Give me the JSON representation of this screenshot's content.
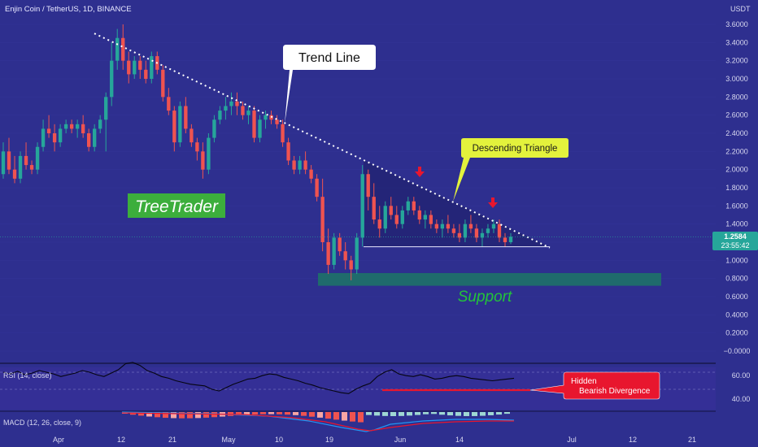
{
  "header": {
    "symbol": "Enjin Coin / TetherUS, 1D, BINANCE",
    "currency": "USDT"
  },
  "annotations": {
    "trend_line": "Trend Line",
    "triangle": "Descending Triangle",
    "brand": "TreeTrader",
    "support": "Support",
    "divergence_line1": "Hidden",
    "divergence_line2": "Bearish Divergence"
  },
  "price_tag": {
    "price": "1.2584",
    "countdown": "23:55:42"
  },
  "panels": {
    "rsi_label": "RSI (14, close)",
    "macd_label": "MACD (12, 26, close, 9)",
    "rsi_ticks": [
      "60.00",
      "40.00"
    ]
  },
  "colors": {
    "background": "#2e2f8f",
    "up": "#26a69a",
    "down": "#ef5350",
    "support_zone": "#1f6f6a",
    "brand_bg": "#3cae3c",
    "triangle_label_bg": "#e3f23c",
    "divergence_bg": "#e8162e"
  },
  "chart_data": {
    "type": "candlestick",
    "title": "Enjin Coin / TetherUS, 1D, BINANCE",
    "y_axis": {
      "min": -0.0,
      "max": 3.6,
      "ticks": [
        "3.6000",
        "3.4000",
        "3.2000",
        "3.0000",
        "2.8000",
        "2.6000",
        "2.4000",
        "2.2000",
        "2.0000",
        "1.8000",
        "1.6000",
        "1.4000",
        "1.2000",
        "1.0000",
        "0.8000",
        "0.6000",
        "0.4000",
        "0.2000",
        "−0.0000"
      ]
    },
    "x_axis": {
      "ticks": [
        "Apr",
        "12",
        "21",
        "May",
        "10",
        "19",
        "Jun",
        "14",
        "Jul",
        "12",
        "21"
      ]
    },
    "last_price": 1.2584,
    "ohlc": [
      [
        1.95,
        2.3,
        1.9,
        2.2
      ],
      [
        2.2,
        2.35,
        1.95,
        2.0
      ],
      [
        2.0,
        2.15,
        1.85,
        1.9
      ],
      [
        1.9,
        2.2,
        1.85,
        2.15
      ],
      [
        2.15,
        2.3,
        2.0,
        2.05
      ],
      [
        2.05,
        2.1,
        1.95,
        2.0
      ],
      [
        2.0,
        2.3,
        1.95,
        2.25
      ],
      [
        2.25,
        2.55,
        2.2,
        2.45
      ],
      [
        2.45,
        2.6,
        2.35,
        2.4
      ],
      [
        2.4,
        2.5,
        2.2,
        2.3
      ],
      [
        2.3,
        2.5,
        2.25,
        2.45
      ],
      [
        2.45,
        2.55,
        2.4,
        2.5
      ],
      [
        2.5,
        2.55,
        2.4,
        2.45
      ],
      [
        2.45,
        2.55,
        2.35,
        2.5
      ],
      [
        2.5,
        2.6,
        2.35,
        2.4
      ],
      [
        2.4,
        2.45,
        2.2,
        2.25
      ],
      [
        2.25,
        2.5,
        2.2,
        2.45
      ],
      [
        2.45,
        2.6,
        2.4,
        2.55
      ],
      [
        2.55,
        2.85,
        2.2,
        2.8
      ],
      [
        2.8,
        3.4,
        2.7,
        3.2
      ],
      [
        3.2,
        3.55,
        3.1,
        3.45
      ],
      [
        3.45,
        3.6,
        3.1,
        3.2
      ],
      [
        3.2,
        3.3,
        2.95,
        3.05
      ],
      [
        3.05,
        3.25,
        3.0,
        3.2
      ],
      [
        3.2,
        3.25,
        3.0,
        3.1
      ],
      [
        3.1,
        3.2,
        2.95,
        3.0
      ],
      [
        3.0,
        3.3,
        2.95,
        3.25
      ],
      [
        3.25,
        3.3,
        3.05,
        3.1
      ],
      [
        3.1,
        3.15,
        2.75,
        2.8
      ],
      [
        2.8,
        2.9,
        2.6,
        2.65
      ],
      [
        2.65,
        2.7,
        2.2,
        2.3
      ],
      [
        2.3,
        2.75,
        2.25,
        2.7
      ],
      [
        2.7,
        2.8,
        2.4,
        2.45
      ],
      [
        2.45,
        2.5,
        2.25,
        2.3
      ],
      [
        2.3,
        2.35,
        2.1,
        2.2
      ],
      [
        2.2,
        2.3,
        1.9,
        2.0
      ],
      [
        2.0,
        2.4,
        1.95,
        2.35
      ],
      [
        2.35,
        2.6,
        2.3,
        2.55
      ],
      [
        2.55,
        2.7,
        2.5,
        2.65
      ],
      [
        2.65,
        2.8,
        2.55,
        2.7
      ],
      [
        2.7,
        2.85,
        2.6,
        2.75
      ],
      [
        2.75,
        2.85,
        2.6,
        2.7
      ],
      [
        2.7,
        2.75,
        2.55,
        2.6
      ],
      [
        2.6,
        2.7,
        2.5,
        2.65
      ],
      [
        2.65,
        2.7,
        2.3,
        2.35
      ],
      [
        2.35,
        2.6,
        2.3,
        2.55
      ],
      [
        2.55,
        2.65,
        2.45,
        2.6
      ],
      [
        2.6,
        2.65,
        2.5,
        2.55
      ],
      [
        2.55,
        2.6,
        2.45,
        2.5
      ],
      [
        2.5,
        2.55,
        2.25,
        2.3
      ],
      [
        2.3,
        2.35,
        2.05,
        2.1
      ],
      [
        2.1,
        2.15,
        1.95,
        2.0
      ],
      [
        2.0,
        2.15,
        1.95,
        2.1
      ],
      [
        2.1,
        2.2,
        1.95,
        2.0
      ],
      [
        2.0,
        2.05,
        1.85,
        1.9
      ],
      [
        1.9,
        1.95,
        1.65,
        1.7
      ],
      [
        1.7,
        1.9,
        1.1,
        1.2
      ],
      [
        1.2,
        1.35,
        0.85,
        0.95
      ],
      [
        0.95,
        1.3,
        0.9,
        1.25
      ],
      [
        1.25,
        1.3,
        1.05,
        1.1
      ],
      [
        1.1,
        1.2,
        0.9,
        1.0
      ],
      [
        1.0,
        1.05,
        0.78,
        0.9
      ],
      [
        0.9,
        1.3,
        0.85,
        1.25
      ],
      [
        1.25,
        2.05,
        1.15,
        1.95
      ],
      [
        1.95,
        2.0,
        1.55,
        1.7
      ],
      [
        1.7,
        1.85,
        1.4,
        1.45
      ],
      [
        1.45,
        1.6,
        1.25,
        1.35
      ],
      [
        1.35,
        1.65,
        1.3,
        1.6
      ],
      [
        1.6,
        1.7,
        1.45,
        1.5
      ],
      [
        1.5,
        1.6,
        1.35,
        1.4
      ],
      [
        1.4,
        1.6,
        1.35,
        1.55
      ],
      [
        1.55,
        1.7,
        1.5,
        1.65
      ],
      [
        1.65,
        1.7,
        1.5,
        1.55
      ],
      [
        1.55,
        1.6,
        1.4,
        1.45
      ],
      [
        1.45,
        1.55,
        1.35,
        1.5
      ],
      [
        1.5,
        1.55,
        1.35,
        1.4
      ],
      [
        1.4,
        1.45,
        1.3,
        1.35
      ],
      [
        1.35,
        1.45,
        1.25,
        1.4
      ],
      [
        1.4,
        1.5,
        1.3,
        1.35
      ],
      [
        1.35,
        1.4,
        1.25,
        1.3
      ],
      [
        1.3,
        1.4,
        1.2,
        1.25
      ],
      [
        1.25,
        1.45,
        1.2,
        1.4
      ],
      [
        1.4,
        1.5,
        1.3,
        1.35
      ],
      [
        1.35,
        1.4,
        1.2,
        1.25
      ],
      [
        1.25,
        1.35,
        1.15,
        1.3
      ],
      [
        1.3,
        1.4,
        1.25,
        1.35
      ],
      [
        1.35,
        1.45,
        1.3,
        1.4
      ],
      [
        1.4,
        1.45,
        1.2,
        1.25
      ],
      [
        1.25,
        1.3,
        1.15,
        1.2
      ],
      [
        1.2,
        1.3,
        1.18,
        1.26
      ]
    ],
    "trend_line": {
      "from": 3.5,
      "to": 1.14
    },
    "support_zone": [
      0.72,
      0.86
    ],
    "triangle_base": 1.15
  }
}
